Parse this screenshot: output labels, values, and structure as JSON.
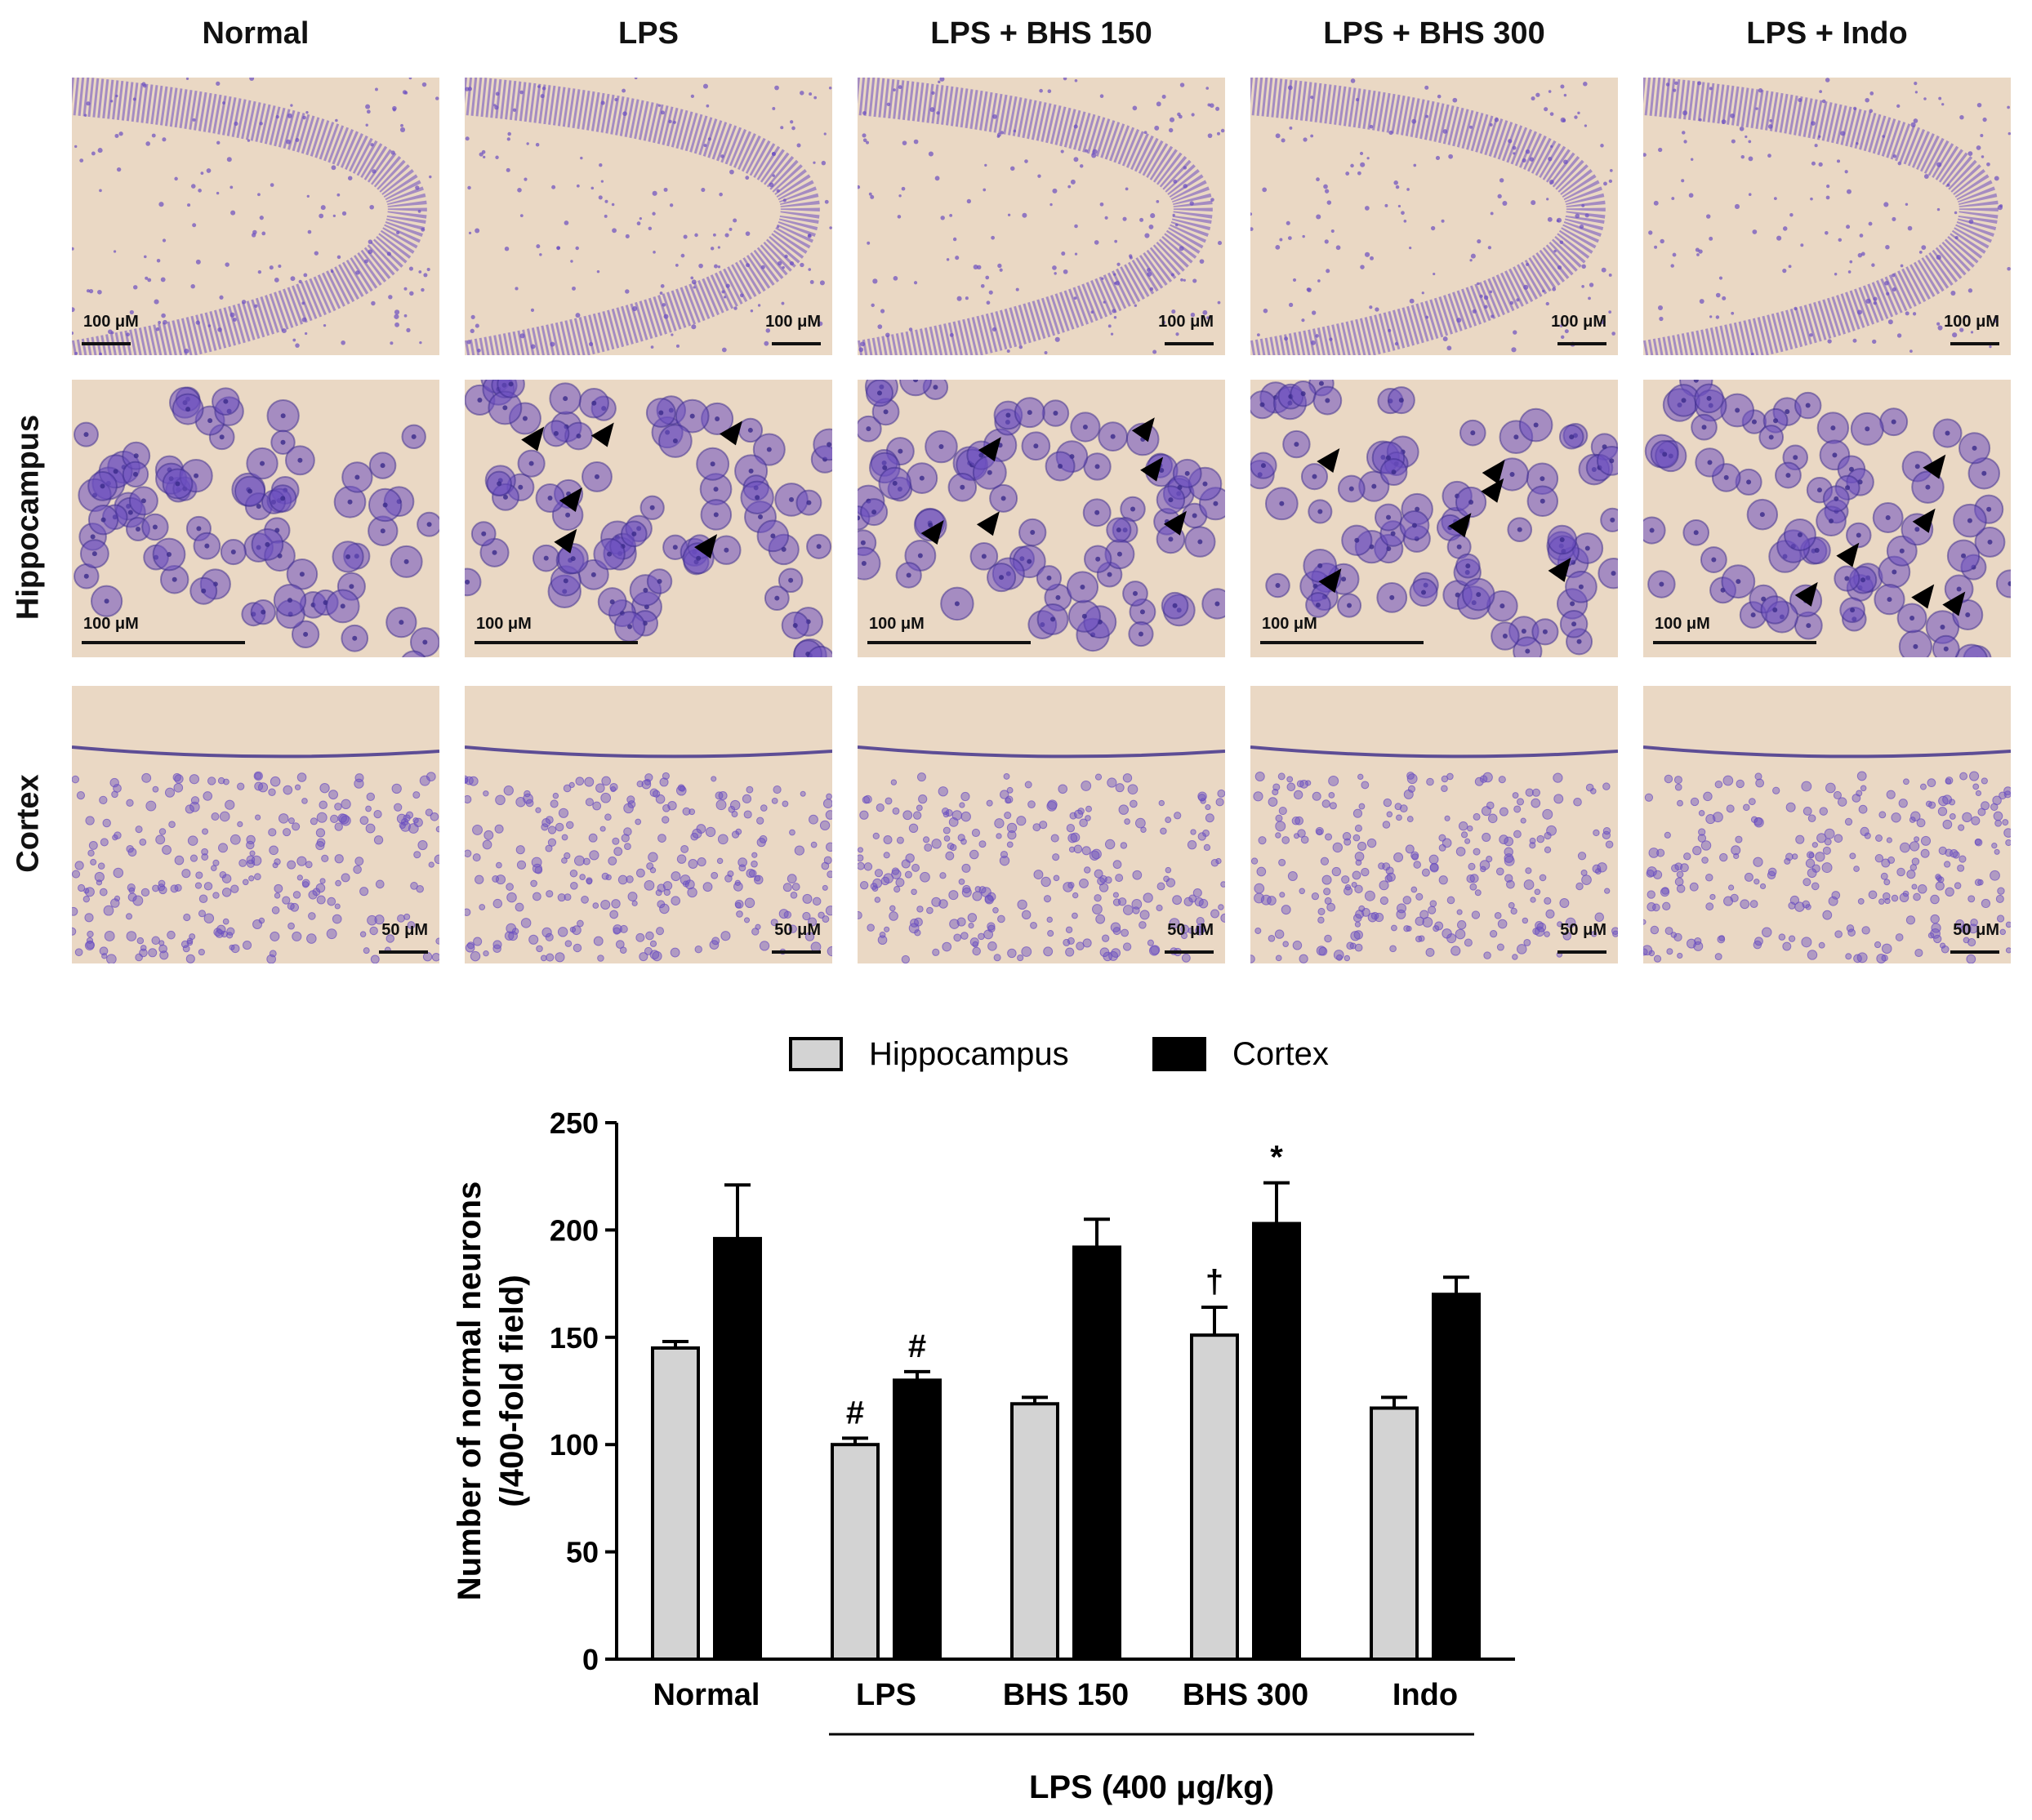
{
  "panel": {
    "columns": [
      "Normal",
      "LPS",
      "LPS + BHS 150",
      "LPS + BHS 300",
      "LPS + Indo"
    ],
    "rows": [
      "",
      "Hippocampus",
      "Cortex"
    ],
    "scale_labels": [
      "100 μM",
      "100 μM",
      "50 μM"
    ],
    "colors": {
      "tissue": "#ead8c4",
      "stain": "#6b4fc0",
      "dark_stain": "#3a2a8a"
    }
  },
  "chart_data": {
    "type": "bar",
    "categories": [
      "Normal",
      "LPS",
      "BHS 150",
      "BHS 300",
      "Indo"
    ],
    "series": [
      {
        "name": "Hippocampus",
        "color": "#d3d3d3",
        "values": [
          145,
          100,
          119,
          151,
          117
        ],
        "errors": [
          3,
          3,
          3,
          13,
          5
        ]
      },
      {
        "name": "Cortex",
        "color": "#000000",
        "values": [
          196,
          130,
          192,
          203,
          170
        ],
        "errors": [
          25,
          4,
          13,
          19,
          8
        ]
      }
    ],
    "annotations": [
      {
        "category": "LPS",
        "series": "Hippocampus",
        "text": "#"
      },
      {
        "category": "LPS",
        "series": "Cortex",
        "text": "#"
      },
      {
        "category": "BHS 300",
        "series": "Hippocampus",
        "text": "†"
      },
      {
        "category": "BHS 300",
        "series": "Cortex",
        "text": "*"
      }
    ],
    "ylabel_line1": "Number of normal neurons",
    "ylabel_line2": "(/400-fold field)",
    "xlabel": "",
    "group_label": "LPS (400 μg/kg)",
    "ylim": [
      0,
      250
    ],
    "yticks": [
      "0",
      "50",
      "100",
      "150",
      "200",
      "250"
    ],
    "legend_position": "top-center",
    "grid": false
  }
}
